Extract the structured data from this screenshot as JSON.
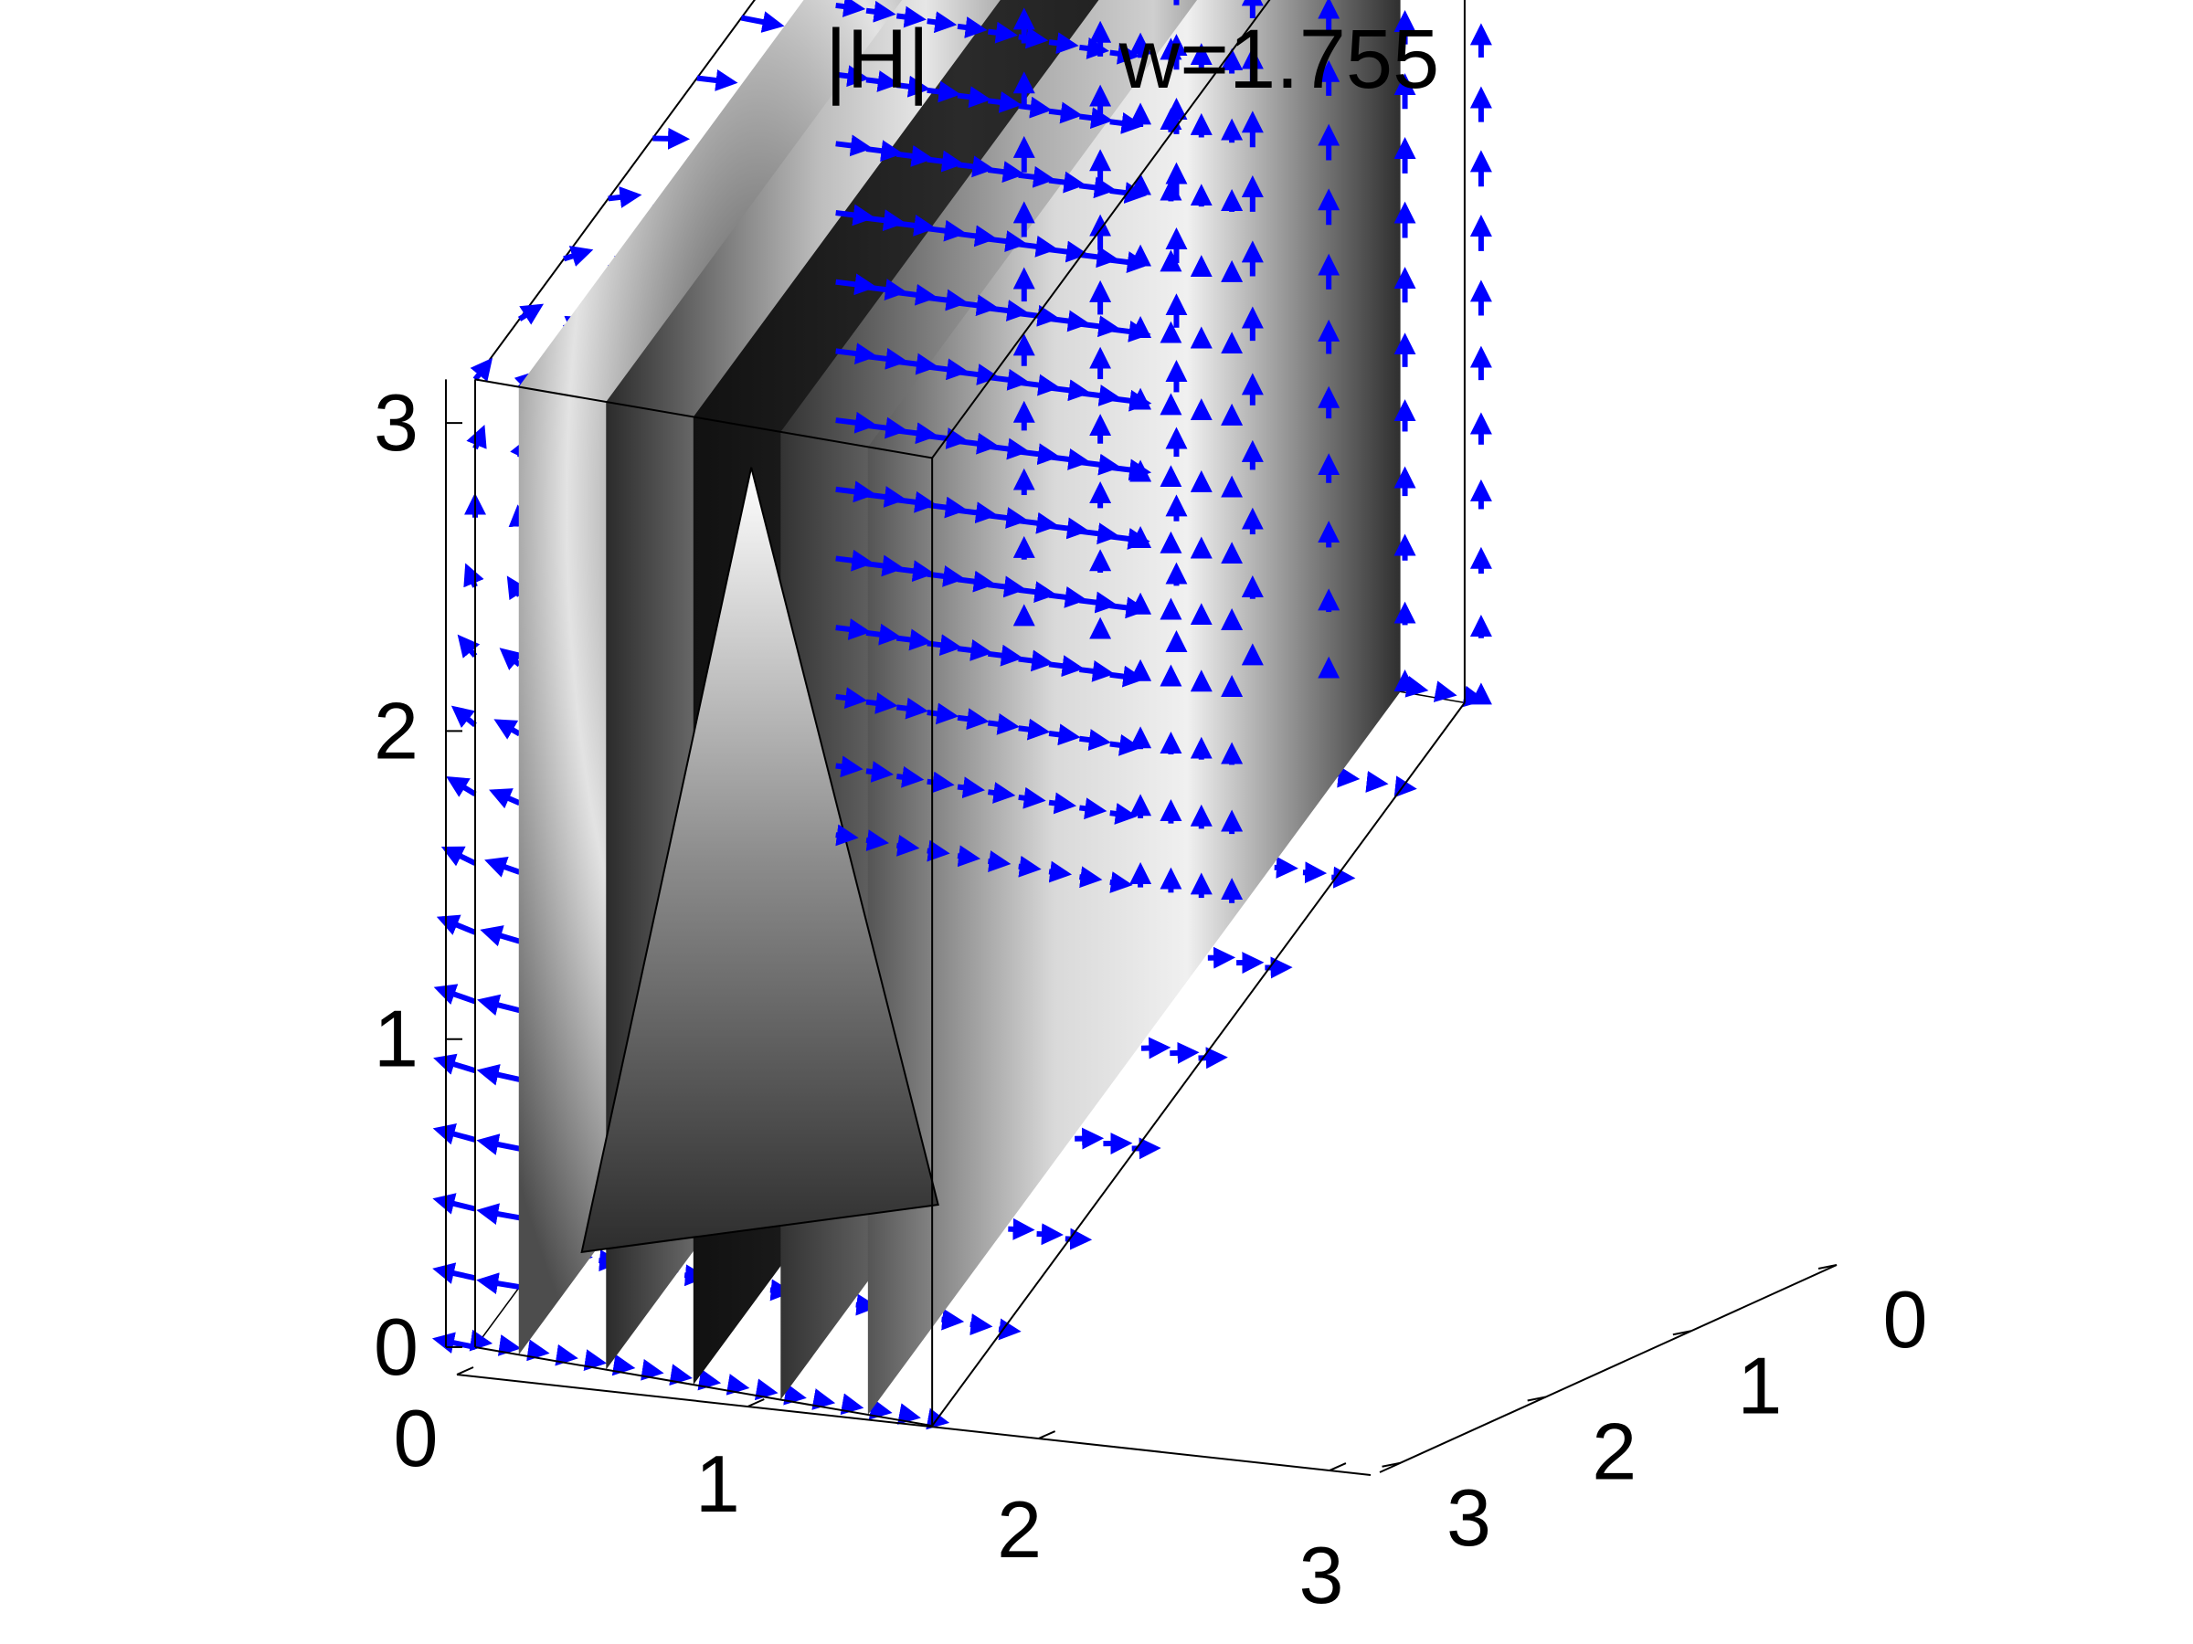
{
  "chart_data": {
    "type": "3d-slice-quiver",
    "title_left": "|H|",
    "title_right": "w=1.755",
    "colormap": "gray",
    "arrow_color": "#0000ff",
    "axes": {
      "x": {
        "ticks": [
          "0",
          "1",
          "2",
          "3"
        ],
        "range": [
          0,
          3.14159
        ]
      },
      "y": {
        "ticks": [
          "0",
          "1",
          "2",
          "3"
        ],
        "range": [
          0,
          3.14159
        ]
      },
      "z": {
        "ticks": [
          "0",
          "1",
          "2",
          "3"
        ],
        "range": [
          0,
          3.14159
        ]
      }
    },
    "slices_x": [
      0.3,
      0.9,
      1.5,
      2.1,
      2.7
    ],
    "grid": false,
    "box": true
  }
}
